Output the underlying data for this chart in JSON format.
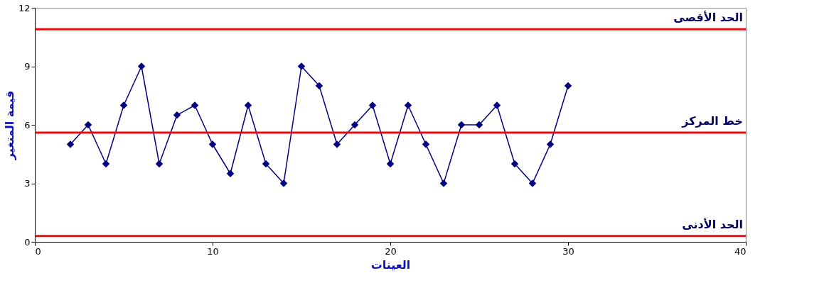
{
  "chart_data": {
    "type": "line",
    "xlabel": "العينات",
    "ylabel": "قيمة المتغير",
    "x": [
      2,
      3,
      4,
      5,
      6,
      7,
      8,
      9,
      10,
      11,
      12,
      13,
      14,
      15,
      16,
      17,
      18,
      19,
      20,
      21,
      22,
      23,
      24,
      25,
      26,
      27,
      28,
      29,
      30
    ],
    "series": [
      {
        "color": "#000080",
        "values": [
          5,
          6,
          4,
          7,
          9,
          4,
          6.5,
          7,
          5,
          3.5,
          7,
          4,
          3,
          9,
          8,
          5,
          6,
          7,
          4,
          7,
          5,
          3,
          6,
          6,
          7,
          4,
          3,
          5,
          8
        ]
      }
    ],
    "xlim": [
      0,
      40
    ],
    "xticks": [
      0,
      10,
      20,
      30,
      40
    ],
    "ylim": [
      0,
      12
    ],
    "yticks": [
      0,
      3,
      6,
      9,
      12
    ],
    "marker": "diamond",
    "line_style": "solid",
    "grid": false,
    "ref_lines": [
      {
        "axis": "y",
        "value": 10.9,
        "label": "الحد الأقصى",
        "color": "#e01010"
      },
      {
        "axis": "y",
        "value": 5.6,
        "label": "خط المركز",
        "color": "#e01010"
      },
      {
        "axis": "y",
        "value": 0.3,
        "label": "الحد الأدنى",
        "color": "#e01010"
      }
    ]
  }
}
